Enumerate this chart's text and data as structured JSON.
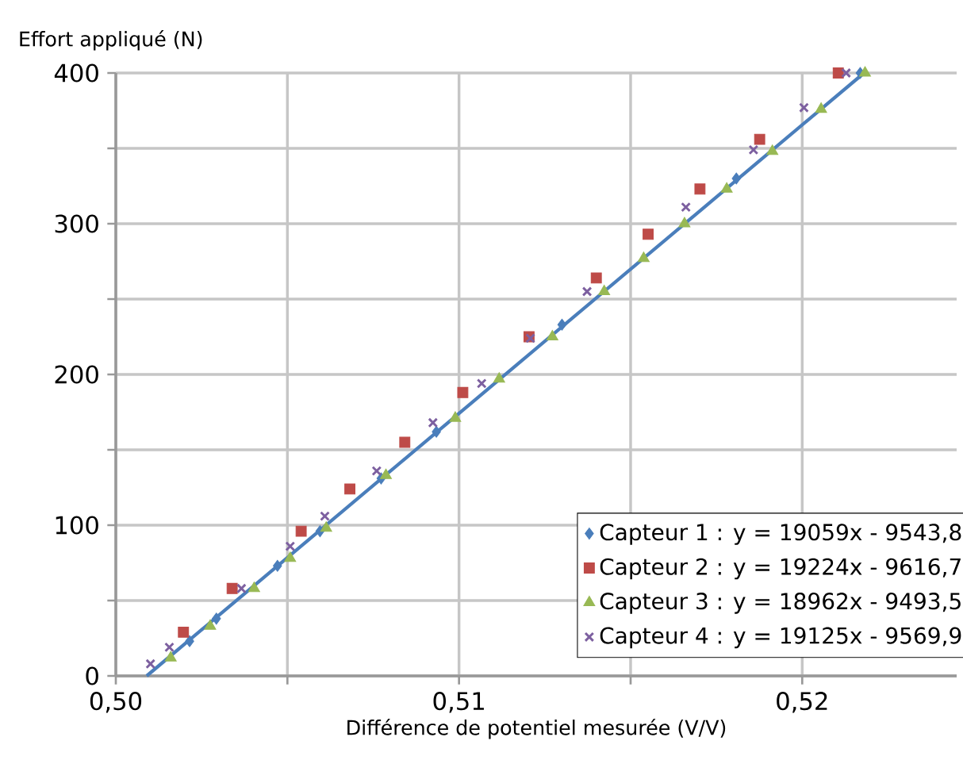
{
  "chart_data": {
    "type": "scatter",
    "xlabel": "Différence de potentiel mesurée (V/V)",
    "ylabel": "Effort appliqué (N)",
    "xlim": [
      0.5,
      0.5245
    ],
    "ylim": [
      0,
      400
    ],
    "xticks": [
      {
        "value": 0.5,
        "label": "0,50"
      },
      {
        "value": 0.505,
        "label": null
      },
      {
        "value": 0.51,
        "label": "0,51"
      },
      {
        "value": 0.515,
        "label": null
      },
      {
        "value": 0.52,
        "label": "0,52"
      }
    ],
    "yticks": [
      0,
      {
        "value": 50,
        "label": null
      },
      100,
      {
        "value": 150,
        "label": null
      },
      200,
      {
        "value": 250,
        "label": null
      },
      300,
      {
        "value": 350,
        "label": null
      },
      400
    ],
    "grid": true,
    "legend": "bottom right",
    "series": [
      {
        "name": "Capteur 1 : y = 19059x - 9543,8",
        "color": "#4a7ebb",
        "marker": "diamond",
        "x": [
          0.50215,
          0.50293,
          0.50471,
          0.50595,
          0.50773,
          0.50934,
          0.513,
          0.51808,
          0.52169
        ],
        "values": [
          23,
          38,
          73,
          96,
          131,
          162,
          233,
          330,
          400
        ]
      },
      {
        "name": "Capteur 2 : y = 19224x - 9616,7",
        "color": "#be4b48",
        "marker": "square",
        "x": [
          0.50197,
          0.50339,
          0.5054,
          0.50682,
          0.50842,
          0.51011,
          0.51204,
          0.514,
          0.51551,
          0.51702,
          0.51876,
          0.52105
        ],
        "values": [
          29,
          58,
          96,
          124,
          155,
          188,
          225,
          264,
          293,
          323,
          356,
          400
        ]
      },
      {
        "name": "Capteur 3 : y = 18962x - 9493,5",
        "color": "#98b954",
        "marker": "triangle",
        "x": [
          0.5016,
          0.50275,
          0.50403,
          0.50508,
          0.50613,
          0.50787,
          0.50989,
          0.51117,
          0.51272,
          0.51423,
          0.51538,
          0.51657,
          0.5178,
          0.51913,
          0.52055,
          0.52183
        ],
        "values": [
          12,
          33,
          58,
          78,
          98,
          133,
          171,
          197,
          225,
          255,
          277,
          300,
          323,
          348,
          376,
          400
        ]
      },
      {
        "name": "Capteur 4 : y = 19125x - 9569,9",
        "color": "#7d60a0",
        "marker": "cross",
        "x": [
          0.50101,
          0.50156,
          0.50366,
          0.50508,
          0.50609,
          0.5076,
          0.50924,
          0.51066,
          0.51208,
          0.51373,
          0.51661,
          0.51858,
          0.52005,
          0.52128
        ],
        "values": [
          8,
          19,
          58,
          86,
          106,
          136,
          168,
          194,
          224,
          255,
          311,
          349,
          377,
          400
        ]
      },
      {
        "type": "line",
        "color": "#4a7ebb",
        "marker": "none",
        "line_style": "solid",
        "x": [
          0.5009,
          0.5218
        ],
        "values": [
          0,
          400
        ]
      }
    ]
  }
}
